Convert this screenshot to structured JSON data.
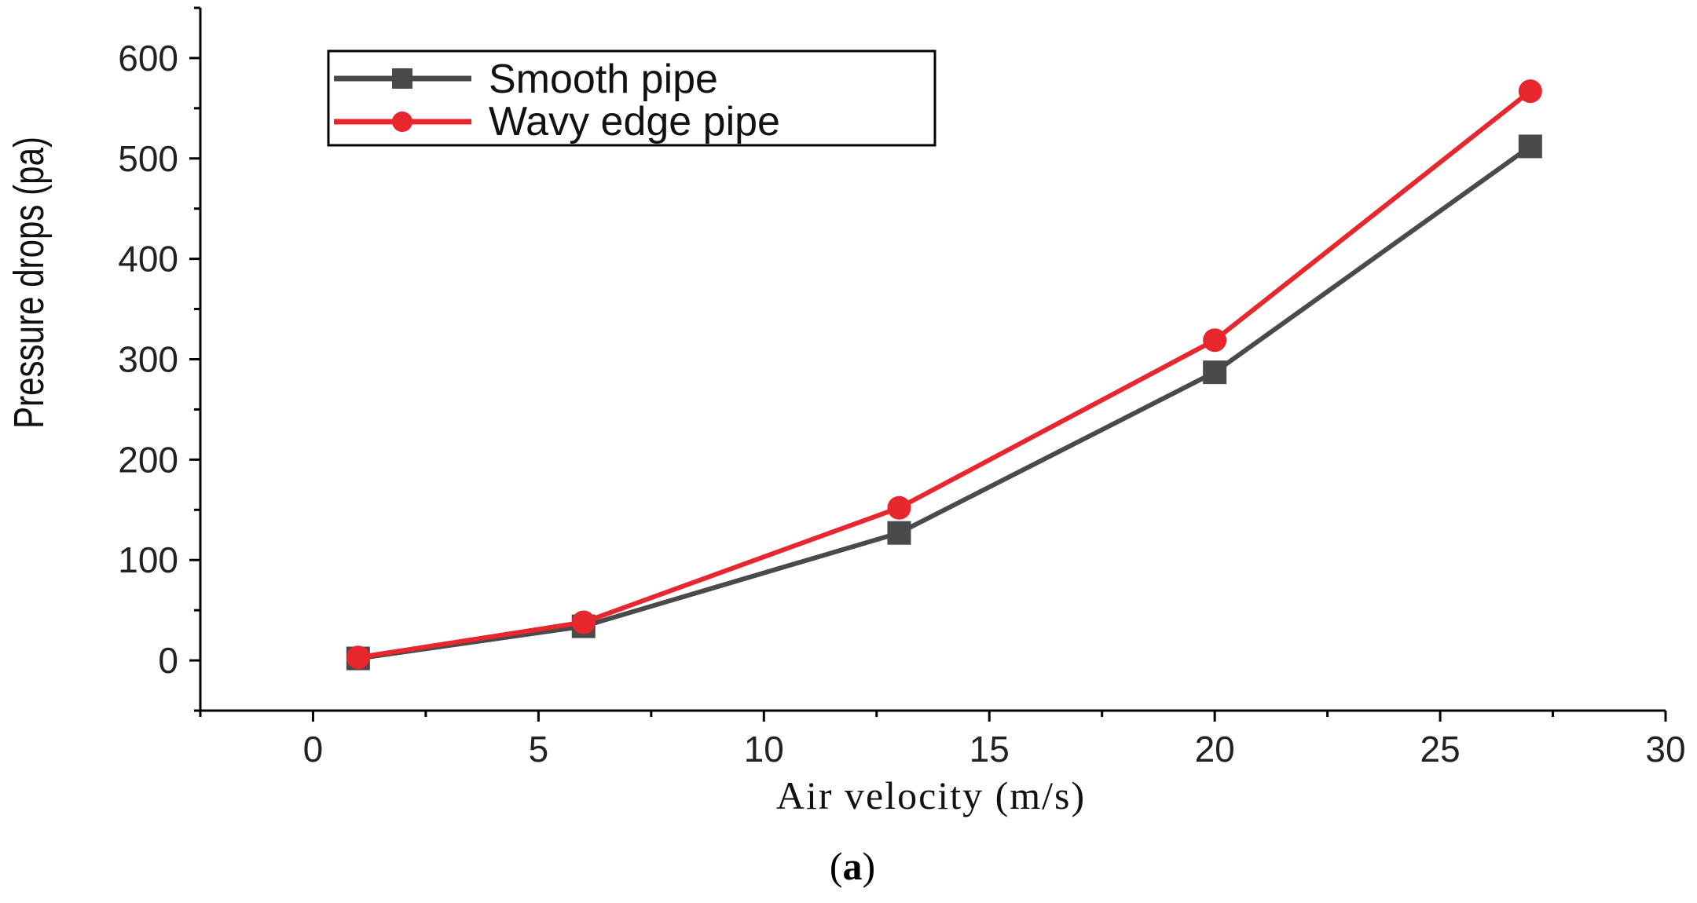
{
  "chart_data": {
    "type": "line",
    "xlabel": "Air velocity (m/s)",
    "ylabel": "Pressure drops (pa)",
    "xlim": [
      -2.5,
      30
    ],
    "ylim": [
      -50,
      650
    ],
    "xticks": [
      0,
      5,
      10,
      15,
      20,
      25,
      30
    ],
    "yticks": [
      0,
      100,
      200,
      300,
      400,
      500,
      600
    ],
    "x": [
      1,
      6,
      13,
      20,
      27
    ],
    "series": [
      {
        "name": "Smooth pipe",
        "color": "#4a4a4a",
        "marker": "square",
        "values": [
          2,
          34,
          127,
          287,
          512
        ]
      },
      {
        "name": "Wavy edge pipe",
        "color": "#e8262d",
        "marker": "circle",
        "values": [
          3,
          38,
          152,
          319,
          567
        ]
      }
    ],
    "legend": "top-left",
    "grid": false
  },
  "caption": {
    "open": "(",
    "letter": "a",
    "close": ")"
  }
}
